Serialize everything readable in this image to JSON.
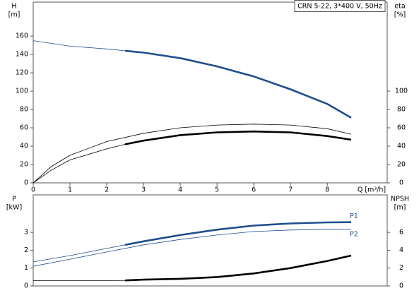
{
  "chart_data": [
    {
      "type": "line",
      "title": "CRN 5-22, 3*400 V, 50Hz",
      "x_label": "Q [m³/h]",
      "y_label": "H",
      "y_unit": "[m]",
      "y2_label": "eta",
      "y2_unit": "[%]",
      "xlim": [
        0,
        9.63
      ],
      "xticks": [
        0,
        1,
        2,
        3,
        4,
        5,
        6,
        7,
        8
      ],
      "ylim": [
        0,
        197
      ],
      "yticks": [
        0,
        20,
        40,
        60,
        80,
        100,
        120,
        140,
        160
      ],
      "y2lim": [
        0,
        197
      ],
      "y2ticks": [
        0,
        20,
        40,
        60,
        80,
        100
      ],
      "series": [
        {
          "color": "#1f4e8c",
          "bold_from_x": 2.5,
          "x": [
            0,
            1,
            2,
            2.5,
            3,
            4,
            5,
            6,
            7,
            8,
            8.65
          ],
          "values": [
            155,
            149,
            146,
            144,
            142,
            136,
            127,
            116,
            102,
            86,
            71
          ]
        },
        {
          "color": "#000000",
          "axis": "y2",
          "x": [
            0,
            0.5,
            1,
            2,
            3,
            4,
            5,
            6,
            7,
            8,
            8.65
          ],
          "values": [
            0,
            18,
            30,
            45,
            54,
            60,
            63,
            64,
            63,
            59,
            53
          ]
        },
        {
          "color": "#000000",
          "axis": "y2",
          "bold_from_x": 2.5,
          "x": [
            0,
            0.5,
            1,
            2,
            2.5,
            3,
            4,
            5,
            6,
            7,
            8,
            8.65
          ],
          "values": [
            0,
            14,
            25,
            37,
            42,
            46,
            52,
            55,
            56,
            55,
            51,
            47
          ]
        }
      ]
    },
    {
      "type": "line",
      "y_label": "P",
      "y_unit": "[kW]",
      "y2_label": "NPSH",
      "y2_unit": "[m]",
      "xlim": [
        0,
        9.63
      ],
      "ylim": [
        0,
        5.1
      ],
      "yticks": [
        0,
        1,
        2,
        3
      ],
      "y2lim": [
        0,
        10.2
      ],
      "y2ticks": [
        0,
        2,
        4,
        6
      ],
      "series": [
        {
          "name": "P1",
          "color": "#1f4e8c",
          "bold_from_x": 2.5,
          "x": [
            0,
            1,
            2,
            2.5,
            3,
            4,
            5,
            6,
            7,
            8,
            8.65
          ],
          "values": [
            1.35,
            1.7,
            2.1,
            2.3,
            2.5,
            2.85,
            3.15,
            3.38,
            3.5,
            3.56,
            3.57
          ]
        },
        {
          "name": "P2",
          "color": "#1f4e8c",
          "x": [
            0,
            1,
            2,
            3,
            4,
            5,
            6,
            7,
            8,
            8.65
          ],
          "values": [
            1.1,
            1.5,
            1.9,
            2.3,
            2.6,
            2.85,
            3.05,
            3.13,
            3.17,
            3.17
          ]
        },
        {
          "color": "#000000",
          "axis": "y2",
          "bold_from_x": 2.5,
          "x": [
            0,
            1,
            2,
            2.5,
            3,
            4,
            5,
            6,
            7,
            8,
            8.65
          ],
          "values": [
            0.6,
            0.6,
            0.6,
            0.62,
            0.7,
            0.8,
            1.0,
            1.4,
            2.0,
            2.8,
            3.4
          ]
        }
      ]
    }
  ]
}
